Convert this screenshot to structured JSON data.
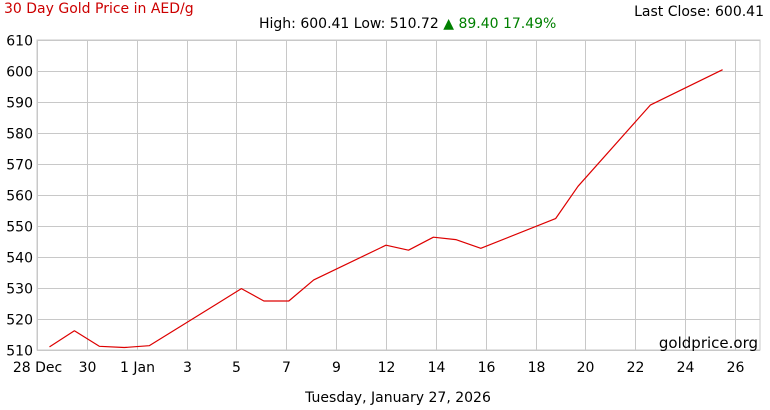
{
  "header": {
    "title": "30 Day Gold Price in AED/g",
    "last_close_label": "Last Close: 600.41",
    "high_low_label": "High: 600.41 Low: 510.72",
    "change_arrow": "▲",
    "change_label": "89.40 17.49%"
  },
  "footer": {
    "date": "Tuesday, January 27, 2026",
    "watermark": "goldprice.org"
  },
  "colors": {
    "line": "#dd0000",
    "title": "#cc0000",
    "up": "#008000",
    "grid": "#c8c8c8"
  },
  "chart_data": {
    "type": "line",
    "title": "30 Day Gold Price in AED/g",
    "xlabel": "",
    "ylabel": "",
    "ylim": [
      510,
      610
    ],
    "xlim": [
      0,
      29
    ],
    "grid": true,
    "y_ticks": [
      510,
      520,
      530,
      540,
      550,
      560,
      570,
      580,
      590,
      600,
      610
    ],
    "x_ticks": [
      {
        "x": 0,
        "label": "28 Dec"
      },
      {
        "x": 2,
        "label": "30"
      },
      {
        "x": 4,
        "label": "1 Jan"
      },
      {
        "x": 6,
        "label": "3"
      },
      {
        "x": 8,
        "label": "5"
      },
      {
        "x": 10,
        "label": "7"
      },
      {
        "x": 12,
        "label": "9"
      },
      {
        "x": 14,
        "label": "12"
      },
      {
        "x": 16,
        "label": "14"
      },
      {
        "x": 18,
        "label": "16"
      },
      {
        "x": 20,
        "label": "18"
      },
      {
        "x": 22,
        "label": "20"
      },
      {
        "x": 24,
        "label": "22"
      },
      {
        "x": 26,
        "label": "24"
      },
      {
        "x": 28,
        "label": "26"
      }
    ],
    "series": [
      {
        "x": [
          0.5,
          1.5,
          2.5,
          3.5,
          4.5,
          7.2,
          8.2,
          9.1,
          10.1,
          11.1,
          14.0,
          14.9,
          15.9,
          16.8,
          17.8,
          20.8,
          21.7,
          24.6,
          27.5
        ],
        "y": [
          511.0,
          516.2,
          511.2,
          510.8,
          511.4,
          524.8,
          529.8,
          525.8,
          525.8,
          532.6,
          543.8,
          542.2,
          546.4,
          545.6,
          542.8,
          552.4,
          562.8,
          589.0,
          600.41
        ]
      }
    ]
  }
}
